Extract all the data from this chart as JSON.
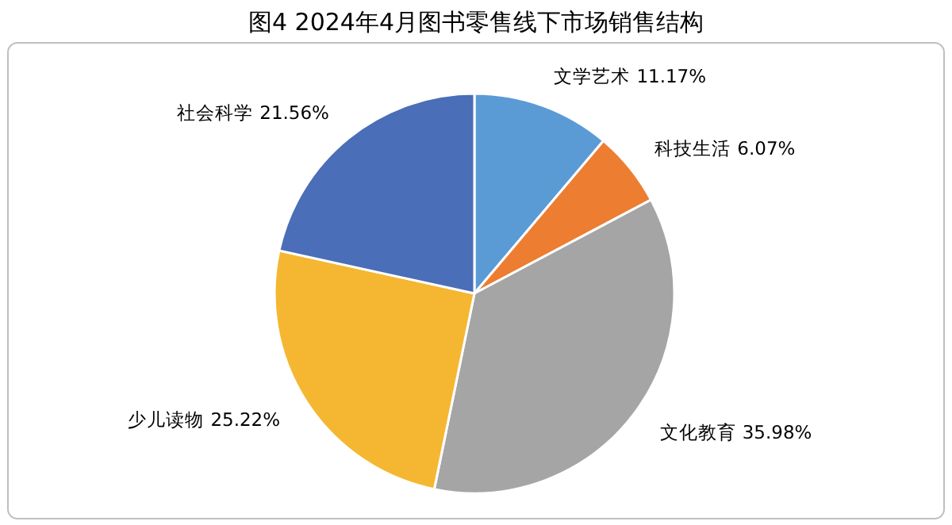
{
  "chart_data": {
    "type": "pie",
    "title": "图4 2024年4月图书零售线下市场销售结构",
    "categories": [
      "文学艺术",
      "科技生活",
      "文化教育",
      "少儿读物",
      "社会科学"
    ],
    "values": [
      11.17,
      6.07,
      35.98,
      25.22,
      21.56
    ],
    "colors": [
      "#5b9bd5",
      "#ed7d31",
      "#a5a5a5",
      "#f5b731",
      "#4a6eb7"
    ],
    "value_labels": [
      "11.17%",
      "6.07%",
      "35.98%",
      "25.22%",
      "21.56%"
    ],
    "legend": false
  }
}
